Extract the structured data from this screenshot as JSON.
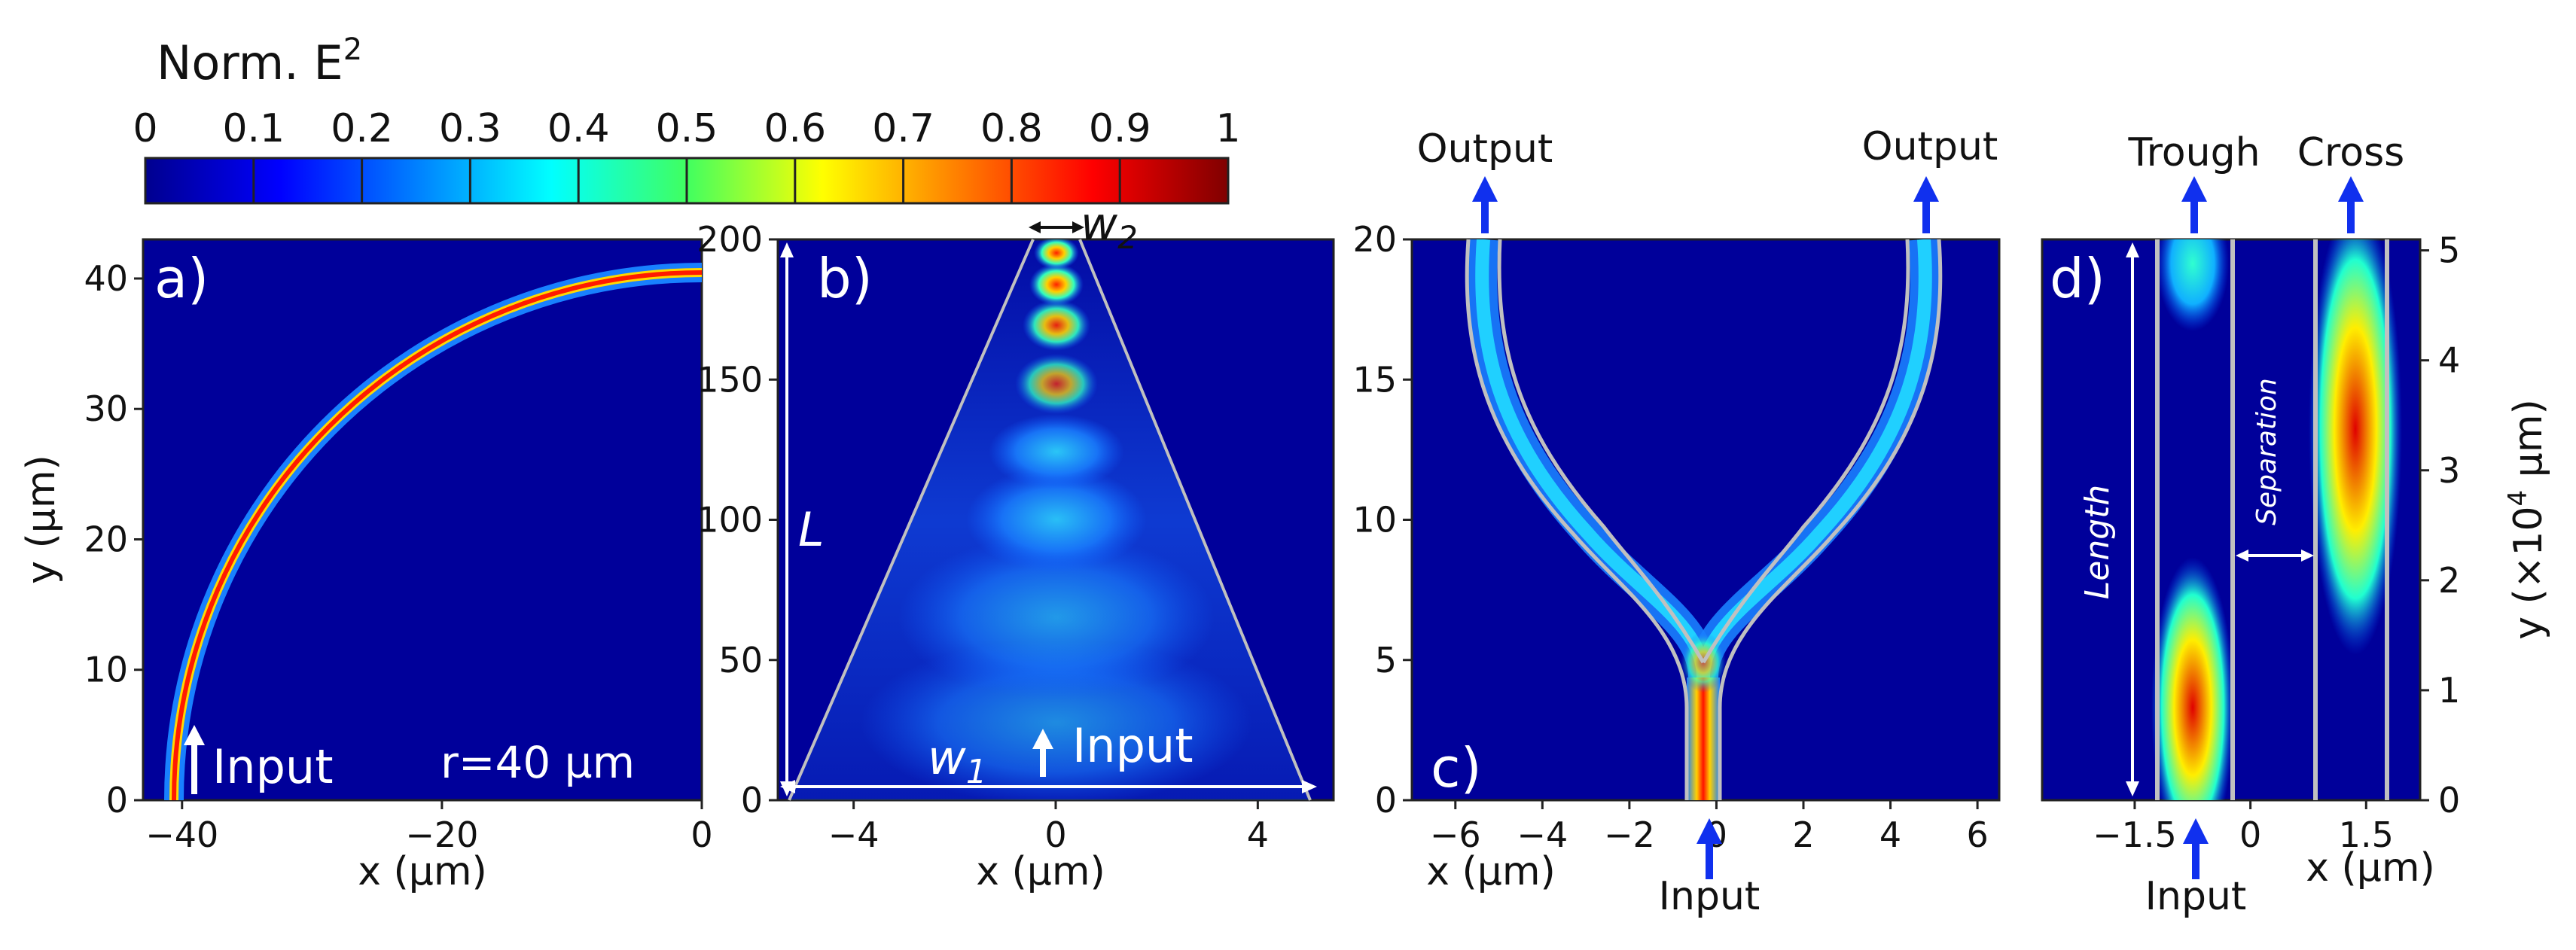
{
  "colorbar": {
    "title_main": "Norm. E",
    "title_sup": "2",
    "ticks": [
      "0",
      "0.1",
      "0.2",
      "0.3",
      "0.4",
      "0.5",
      "0.6",
      "0.7",
      "0.8",
      "0.9",
      "1"
    ]
  },
  "chart_data": [
    {
      "id": "a",
      "type": "heatmap",
      "panel_label": "a)",
      "description_text": "r=40 µm",
      "input_label": "Input",
      "xlabel": "x (µm)",
      "ylabel": "y (µm)",
      "xlim": [
        -43,
        0
      ],
      "ylim": [
        0,
        43
      ],
      "xticks": [
        -40,
        -20,
        0
      ],
      "xtick_labels": [
        "−40",
        "−20",
        "0"
      ],
      "yticks": [
        0,
        10,
        20,
        30,
        40
      ],
      "ytick_labels": [
        "0",
        "10",
        "20",
        "30",
        "40"
      ],
      "bend_radius_um": 40
    },
    {
      "id": "b",
      "type": "heatmap",
      "panel_label": "b)",
      "input_label": "Input",
      "length_label": "L",
      "w1_label": "w",
      "w1_sub": "1",
      "w2_label": "w",
      "w2_sub": "2",
      "xlabel": "x (µm)",
      "ylabel": "",
      "xlim": [
        -5.5,
        5.5
      ],
      "ylim": [
        0,
        200
      ],
      "xticks": [
        -4,
        0,
        4
      ],
      "xtick_labels": [
        "−4",
        "0",
        "4"
      ],
      "yticks": [
        0,
        50,
        100,
        150,
        200
      ],
      "ytick_labels": [
        "0",
        "50",
        "100",
        "150",
        "200"
      ]
    },
    {
      "id": "c",
      "type": "heatmap",
      "panel_label": "c)",
      "output_left_label": "Output",
      "output_right_label": "Output",
      "input_label": "Input",
      "xlabel": "x (µm)",
      "ylabel": "",
      "xlim": [
        -7,
        6.5
      ],
      "ylim": [
        0,
        20
      ],
      "xticks": [
        -6,
        -4,
        -2,
        0,
        2,
        4,
        6
      ],
      "xtick_labels": [
        "−6",
        "−4",
        "−2",
        "0",
        "2",
        "4",
        "6"
      ],
      "yticks": [
        0,
        5,
        10,
        15,
        20
      ],
      "ytick_labels": [
        "0",
        "5",
        "10",
        "15",
        "20"
      ]
    },
    {
      "id": "d",
      "type": "heatmap",
      "panel_label": "d)",
      "through_label": "Trough",
      "cross_label": "Cross",
      "input_label": "Input",
      "length_label": "Length",
      "separation_label": "Separation",
      "xlabel": "x (µm)",
      "ylabel_main": "y (×10",
      "ylabel_sup": "4",
      "ylabel_end": " µm)",
      "xlim": [
        -2.7,
        2.2
      ],
      "ylim": [
        0,
        5.1
      ],
      "xticks": [
        -1.5,
        0,
        1.5
      ],
      "xtick_labels": [
        "−1.5",
        "0",
        "1.5"
      ],
      "yticks": [
        0,
        1,
        2,
        3,
        4,
        5
      ],
      "ytick_labels": [
        "0",
        "1",
        "2",
        "3",
        "4",
        "5"
      ]
    }
  ]
}
